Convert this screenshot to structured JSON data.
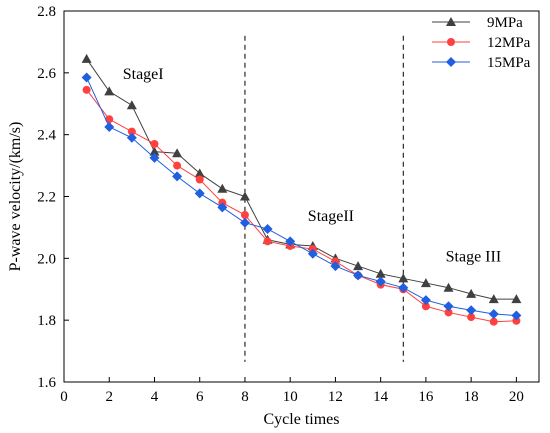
{
  "chart_data": {
    "type": "line",
    "xlabel": "Cycle times",
    "ylabel": "P-wave velocity/(km/s)",
    "xlim": [
      0,
      21
    ],
    "ylim": [
      1.6,
      2.8
    ],
    "x_ticks": [
      0,
      2,
      4,
      6,
      8,
      10,
      12,
      14,
      16,
      18,
      20
    ],
    "y_ticks": [
      1.6,
      1.8,
      2.0,
      2.2,
      2.4,
      2.6,
      2.8
    ],
    "x_tick_labels": [
      "0",
      "2",
      "4",
      "6",
      "8",
      "10",
      "12",
      "14",
      "16",
      "18",
      "20"
    ],
    "y_tick_labels": [
      "1.6",
      "1.8",
      "2.0",
      "2.2",
      "2.4",
      "2.6",
      "2.8"
    ],
    "x": [
      1,
      2,
      3,
      4,
      5,
      6,
      7,
      8,
      9,
      10,
      11,
      12,
      13,
      14,
      15,
      16,
      17,
      18,
      19,
      20
    ],
    "series": [
      {
        "name": "9MPa",
        "color": "#404040",
        "marker": "triangle",
        "values": [
          2.645,
          2.54,
          2.495,
          2.345,
          2.34,
          2.275,
          2.225,
          2.2,
          2.06,
          2.045,
          2.04,
          2.0,
          1.975,
          1.95,
          1.935,
          1.92,
          1.905,
          1.885,
          1.868,
          1.868
        ]
      },
      {
        "name": "12MPa",
        "color": "#ff4040",
        "marker": "circle",
        "values": [
          2.545,
          2.45,
          2.41,
          2.37,
          2.3,
          2.255,
          2.18,
          2.14,
          2.055,
          2.04,
          2.03,
          1.99,
          1.945,
          1.915,
          1.9,
          1.845,
          1.825,
          1.81,
          1.795,
          1.798
        ]
      },
      {
        "name": "15MPa",
        "color": "#1f5fe0",
        "marker": "diamond",
        "values": [
          2.585,
          2.425,
          2.39,
          2.325,
          2.265,
          2.21,
          2.165,
          2.115,
          2.095,
          2.055,
          2.015,
          1.975,
          1.945,
          1.925,
          1.905,
          1.865,
          1.845,
          1.832,
          1.82,
          1.815
        ]
      }
    ],
    "stage_dividers": [
      8,
      15
    ],
    "annotations": [
      {
        "text": "StageI",
        "x": 3.5,
        "y": 2.58
      },
      {
        "text": "StageII",
        "x": 11.8,
        "y": 2.12
      },
      {
        "text": "Stage III",
        "x": 18.1,
        "y": 1.99
      }
    ],
    "legend_position": "top-right",
    "grid": false
  }
}
